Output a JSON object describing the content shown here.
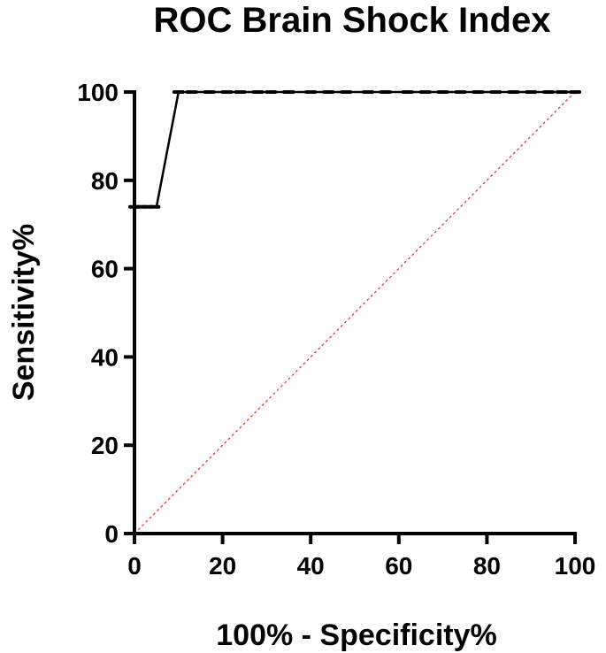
{
  "chart_data": {
    "type": "line",
    "title": "ROC Brain Shock Index",
    "xlabel": "100% - Specificity%",
    "ylabel": "Sensitivity%",
    "xlim": [
      0,
      100
    ],
    "ylim": [
      0,
      100
    ],
    "xticks": [
      0,
      20,
      40,
      60,
      80,
      100
    ],
    "yticks": [
      0,
      20,
      40,
      60,
      80,
      100
    ],
    "grid": false,
    "series": [
      {
        "points": [
          [
            0,
            74
          ],
          [
            5,
            74
          ],
          [
            10,
            100
          ],
          [
            100,
            100
          ]
        ],
        "color": "#000000"
      },
      {
        "points": [
          [
            0,
            0
          ],
          [
            100,
            100
          ]
        ],
        "color": "#e03030",
        "style": "dotted"
      }
    ],
    "markers": [
      [
        0,
        74
      ],
      [
        1.5,
        74
      ],
      [
        3,
        74
      ],
      [
        4.5,
        74
      ],
      [
        10,
        100
      ],
      [
        13,
        100
      ],
      [
        17,
        100
      ],
      [
        21,
        100
      ],
      [
        24,
        100
      ],
      [
        28,
        100
      ],
      [
        31,
        100
      ],
      [
        35,
        100
      ],
      [
        40,
        100
      ],
      [
        44,
        100
      ],
      [
        48,
        100
      ],
      [
        53,
        100
      ],
      [
        57,
        100
      ],
      [
        62,
        100
      ],
      [
        66,
        100
      ],
      [
        70,
        100
      ],
      [
        74,
        100
      ],
      [
        78,
        100
      ],
      [
        82,
        100
      ],
      [
        86,
        100
      ],
      [
        90,
        100
      ],
      [
        94,
        100
      ],
      [
        97,
        100
      ],
      [
        100,
        100
      ]
    ]
  }
}
